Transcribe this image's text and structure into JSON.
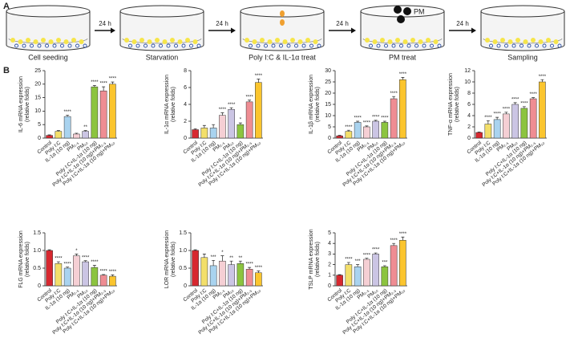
{
  "panel_a": {
    "label": "A",
    "steps": [
      "Cell seeding",
      "Starvation",
      "Poly I:C & IL-1α treat",
      "PM treat",
      "Sampling"
    ],
    "arrows": [
      "24 h",
      "24 h",
      "24 h",
      "24 h"
    ],
    "pm_label": "PM"
  },
  "panel_b": {
    "label": "B"
  },
  "chart_data": [
    {
      "type": "bar",
      "ylabel": [
        "IL-6 mRNA expression",
        "(relative folds)"
      ],
      "categories": [
        "Control",
        "Poly I:C",
        "IL-1α (10 ng)",
        "PM₂.₅",
        "PM₁₀",
        "Poly I:C+IL-1α (10 ng)",
        "Poly I:C+IL-1α (10 ng)+PM₂.₅",
        "Poly I:C+IL-1α (10 ng)+PM₁₀"
      ],
      "colors": [
        "#d7282f",
        "#f3df6a",
        "#a9d3ef",
        "#f5cfd4",
        "#cbc5e4",
        "#8cc43f",
        "#ef8d93",
        "#fbc52e"
      ],
      "values": [
        1,
        2.5,
        8,
        1.5,
        2.5,
        19,
        17.5,
        20
      ],
      "errors": [
        0.2,
        0.3,
        0.5,
        0.3,
        0.3,
        0.5,
        1.5,
        0.8
      ],
      "significance": [
        "",
        "",
        "****",
        "",
        "**",
        "****",
        "****",
        "****"
      ],
      "ylim": [
        0,
        25
      ],
      "yticks": [
        0,
        5,
        10,
        15,
        20,
        25
      ]
    },
    {
      "type": "bar",
      "ylabel": [
        "IL-1α mRNA expression",
        "(relative folds)"
      ],
      "categories": [
        "Control",
        "Poly I:C",
        "IL-1α (10 ng)",
        "PM₂.₅",
        "PM₁₀",
        "Poly I:C+IL-1α (10 ng)",
        "Poly I:C+IL-1α (10 ng)+PM₂.₅",
        "Poly I:C+IL-1α (10 ng)+PM₁₀"
      ],
      "colors": [
        "#d7282f",
        "#f3df6a",
        "#a9d3ef",
        "#f5cfd4",
        "#cbc5e4",
        "#8cc43f",
        "#ef8d93",
        "#fbc52e"
      ],
      "values": [
        1,
        1.2,
        1.2,
        2.7,
        3.4,
        1.6,
        4.3,
        6.6
      ],
      "errors": [
        0.1,
        0.3,
        0.4,
        0.3,
        0.2,
        0.2,
        0.2,
        0.4
      ],
      "significance": [
        "",
        "",
        "",
        "****",
        "****",
        "*",
        "****",
        "****"
      ],
      "ylim": [
        0,
        8
      ],
      "yticks": [
        0,
        2,
        4,
        6,
        8
      ]
    },
    {
      "type": "bar",
      "ylabel": [
        "IL-1β mRNA expression",
        "(relative folds)"
      ],
      "categories": [
        "Control",
        "Poly I:C",
        "IL-1α (10 ng)",
        "PM₂.₅",
        "PM₁₀",
        "Poly I:C+IL-1α (10 ng)",
        "Poly I:C+IL-1α (10 ng)+PM₂.₅",
        "Poly I:C+IL-1α (10 ng)+PM₁₀"
      ],
      "colors": [
        "#d7282f",
        "#f3df6a",
        "#a9d3ef",
        "#f5cfd4",
        "#cbc5e4",
        "#8cc43f",
        "#ef8d93",
        "#fbc52e"
      ],
      "values": [
        1,
        3,
        7,
        5,
        7.5,
        7,
        17.5,
        26
      ],
      "errors": [
        0.2,
        0.5,
        0.5,
        0.4,
        0.4,
        0.5,
        1,
        1
      ],
      "significance": [
        "",
        "****",
        "****",
        "****",
        "****",
        "****",
        "****",
        "****"
      ],
      "ylim": [
        0,
        30
      ],
      "yticks": [
        0,
        5,
        10,
        15,
        20,
        25,
        30
      ]
    },
    {
      "type": "bar",
      "ylabel": [
        "TNF-α mRNA expression",
        "(relative folds)"
      ],
      "categories": [
        "Control",
        "Poly I:C",
        "IL-1α (10 ng)",
        "PM₂.₅",
        "PM₁₀",
        "Poly I:C+IL-1α (10 ng)",
        "Poly I:C+IL-1α (10 ng)+PM₂.₅",
        "Poly I:C+IL-1α (10 ng)+PM₁₀"
      ],
      "colors": [
        "#d7282f",
        "#f3df6a",
        "#a9d3ef",
        "#f5cfd4",
        "#cbc5e4",
        "#8cc43f",
        "#ef8d93",
        "#fbc52e"
      ],
      "values": [
        1,
        2.5,
        3.3,
        4.3,
        6,
        5.3,
        7,
        10
      ],
      "errors": [
        0.1,
        0.6,
        0.4,
        0.3,
        0.3,
        0.3,
        0.2,
        0.4
      ],
      "significance": [
        "",
        "****",
        "****",
        "****",
        "****",
        "****",
        "****",
        "****"
      ],
      "ylim": [
        0,
        12
      ],
      "yticks": [
        0,
        2,
        4,
        6,
        8,
        10,
        12
      ]
    },
    {
      "type": "bar",
      "ylabel": [
        "FLG mRNA expression",
        "(relative folds)"
      ],
      "categories": [
        "Control",
        "Poly I:C",
        "IL-1α (10 ng)",
        "PM₂.₅",
        "PM₁₀",
        "Poly I:C+IL-1α (10 ng)",
        "Poly I:C+IL-1α (10 ng)+PM₂.₅",
        "Poly I:C+IL-1α (10 ng)+PM₁₀"
      ],
      "colors": [
        "#d7282f",
        "#f3df6a",
        "#a9d3ef",
        "#f5cfd4",
        "#cbc5e4",
        "#8cc43f",
        "#ef8d93",
        "#fbc52e"
      ],
      "values": [
        1,
        0.63,
        0.5,
        0.85,
        0.68,
        0.52,
        0.3,
        0.27
      ],
      "errors": [
        0.02,
        0.05,
        0.03,
        0.05,
        0.03,
        0.06,
        0.02,
        0.04
      ],
      "significance": [
        "",
        "****",
        "****",
        "*",
        "****",
        "****",
        "****",
        "****"
      ],
      "ylim": [
        0,
        1.5
      ],
      "yticks": [
        0,
        0.5,
        {
          "value": 1,
          "label": "1.0"
        },
        1.5
      ]
    },
    {
      "type": "bar",
      "ylabel": [
        "LOR mRNA expression",
        "(relative folds)"
      ],
      "categories": [
        "Control",
        "Poly I:C",
        "IL-1α (10 ng)",
        "PM₂.₅",
        "PM₁₀",
        "Poly I:C+IL-1α (10 ng)",
        "Poly I:C+IL-1α (10 ng)+PM₂.₅",
        "Poly I:C+IL-1α (10 ng)+PM₁₀"
      ],
      "colors": [
        "#d7282f",
        "#f3df6a",
        "#a9d3ef",
        "#f5cfd4",
        "#cbc5e4",
        "#8cc43f",
        "#ef8d93",
        "#fbc52e"
      ],
      "values": [
        1,
        0.8,
        0.57,
        0.7,
        0.6,
        0.63,
        0.47,
        0.37
      ],
      "errors": [
        0.02,
        0.1,
        0.15,
        0.15,
        0.1,
        0.07,
        0.05,
        0.05
      ],
      "significance": [
        "",
        "",
        "***",
        "*",
        "**",
        "**",
        "****",
        "****"
      ],
      "ylim": [
        0,
        1.5
      ],
      "yticks": [
        0,
        0.5,
        {
          "value": 1,
          "label": "1.0"
        },
        1.5
      ]
    },
    {
      "type": "bar",
      "ylabel": [
        "TSLP mRNA expression",
        "(relative folds)"
      ],
      "categories": [
        "Control",
        "Poly I:C",
        "IL-1α (10 ng)",
        "PM₂.₅",
        "PM₁₀",
        "Poly I:C+IL-1α (10 ng)",
        "Poly I:C+IL-1α (10 ng)+PM₂.₅",
        "Poly I:C+IL-1α (10 ng)+PM₁₀"
      ],
      "colors": [
        "#d7282f",
        "#f3df6a",
        "#a9d3ef",
        "#f5cfd4",
        "#cbc5e4",
        "#8cc43f",
        "#ef8d93",
        "#fbc52e"
      ],
      "values": [
        1,
        2,
        1.8,
        2.5,
        3,
        1.8,
        3.8,
        4.3
      ],
      "errors": [
        0.05,
        0.2,
        0.2,
        0.1,
        0.1,
        0.1,
        0.2,
        0.3
      ],
      "significance": [
        "",
        "****",
        "***",
        "****",
        "****",
        "***",
        "****",
        "****"
      ],
      "ylim": [
        0,
        5
      ],
      "yticks": [
        0,
        1,
        2,
        3,
        4,
        5
      ]
    }
  ]
}
